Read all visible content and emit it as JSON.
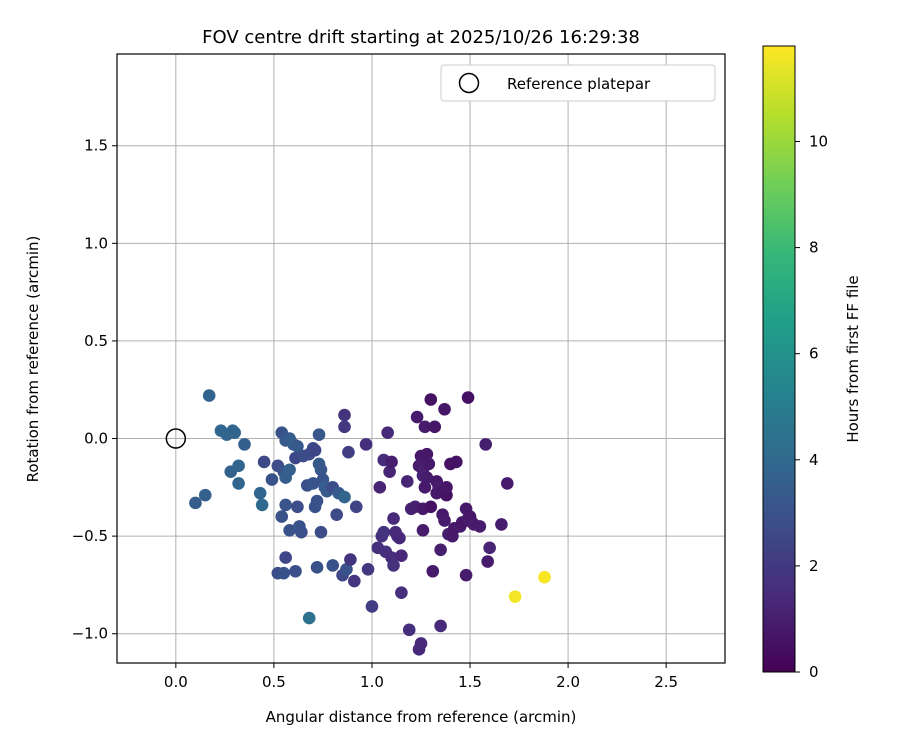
{
  "chart_data": {
    "type": "scatter",
    "title": "FOV centre drift starting at 2025/10/26 16:29:38",
    "xlabel": "Angular distance from reference (arcmin)",
    "ylabel": "Rotation from reference (arcmin)",
    "xlim": [
      -0.3,
      2.8
    ],
    "ylim": [
      -1.15,
      1.97
    ],
    "xticks": [
      0.0,
      0.5,
      1.0,
      1.5,
      2.0,
      2.5
    ],
    "xtick_labels": [
      "0.0",
      "0.5",
      "1.0",
      "1.5",
      "2.0",
      "2.5"
    ],
    "yticks": [
      -1.0,
      -0.5,
      0.0,
      0.5,
      1.0,
      1.5
    ],
    "ytick_labels": [
      "−1.0",
      "−0.5",
      "0.0",
      "0.5",
      "1.0",
      "1.5"
    ],
    "grid": true,
    "legend": {
      "placement": "top-right",
      "entries": [
        "Reference platepar"
      ]
    },
    "reference_point": {
      "x": 0.0,
      "y": 0.0,
      "label": "Reference platepar"
    },
    "colorbar": {
      "label": "Hours from first FF file",
      "range": [
        0,
        11.8
      ],
      "ticks": [
        0,
        2,
        4,
        6,
        8,
        10
      ],
      "tick_labels": [
        "0",
        "2",
        "4",
        "6",
        "8",
        "10"
      ],
      "colormap": [
        "#440154",
        "#482878",
        "#3e4989",
        "#31688e",
        "#26828e",
        "#1f9e89",
        "#35b779",
        "#6ece58",
        "#b5de2b",
        "#fde725"
      ]
    },
    "series": [
      {
        "name": "FOV centre",
        "points": [
          [
            0.17,
            0.22,
            3.7
          ],
          [
            0.23,
            0.04,
            3.9
          ],
          [
            0.26,
            0.02,
            3.8
          ],
          [
            0.29,
            0.04,
            3.9
          ],
          [
            0.3,
            0.03,
            3.8
          ],
          [
            0.35,
            -0.03,
            3.6
          ],
          [
            0.1,
            -0.33,
            3.5
          ],
          [
            0.15,
            -0.29,
            3.6
          ],
          [
            0.28,
            -0.17,
            3.7
          ],
          [
            0.32,
            -0.14,
            3.8
          ],
          [
            0.32,
            -0.23,
            3.8
          ],
          [
            0.43,
            -0.28,
            3.8
          ],
          [
            0.44,
            -0.34,
            4.0
          ],
          [
            0.45,
            -0.12,
            2.6
          ],
          [
            0.49,
            -0.21,
            3.0
          ],
          [
            0.52,
            -0.14,
            2.8
          ],
          [
            0.54,
            0.03,
            3.0
          ],
          [
            0.56,
            -0.01,
            3.3
          ],
          [
            0.58,
            0.0,
            3.4
          ],
          [
            0.6,
            -0.03,
            3.5
          ],
          [
            0.62,
            -0.04,
            3.3
          ],
          [
            0.55,
            -0.17,
            3.0
          ],
          [
            0.56,
            -0.2,
            3.5
          ],
          [
            0.58,
            -0.16,
            3.6
          ],
          [
            0.54,
            -0.4,
            3.0
          ],
          [
            0.56,
            -0.34,
            3.1
          ],
          [
            0.58,
            -0.47,
            3.0
          ],
          [
            0.62,
            -0.35,
            2.8
          ],
          [
            0.63,
            -0.45,
            3.0
          ],
          [
            0.64,
            -0.48,
            2.9
          ],
          [
            0.61,
            -0.1,
            2.6
          ],
          [
            0.65,
            -0.09,
            2.8
          ],
          [
            0.67,
            -0.24,
            2.9
          ],
          [
            0.68,
            -0.08,
            2.7
          ],
          [
            0.7,
            -0.05,
            2.8
          ],
          [
            0.71,
            -0.06,
            2.5
          ],
          [
            0.7,
            -0.23,
            3.1
          ],
          [
            0.71,
            -0.35,
            3.0
          ],
          [
            0.72,
            -0.32,
            3.0
          ],
          [
            0.73,
            0.02,
            3.2
          ],
          [
            0.73,
            -0.13,
            3.3
          ],
          [
            0.74,
            -0.16,
            3.2
          ],
          [
            0.75,
            -0.21,
            3.1
          ],
          [
            0.76,
            -0.25,
            3.5
          ],
          [
            0.77,
            -0.27,
            3.4
          ],
          [
            0.74,
            -0.48,
            2.8
          ],
          [
            0.52,
            -0.69,
            2.8
          ],
          [
            0.55,
            -0.69,
            3.0
          ],
          [
            0.56,
            -0.61,
            2.6
          ],
          [
            0.61,
            -0.68,
            2.9
          ],
          [
            0.68,
            -0.92,
            4.4
          ],
          [
            0.72,
            -0.66,
            3.0
          ],
          [
            0.8,
            -0.65,
            3.0
          ],
          [
            0.8,
            -0.25,
            2.8
          ],
          [
            0.82,
            -0.39,
            2.7
          ],
          [
            0.83,
            -0.28,
            3.4
          ],
          [
            0.85,
            -0.7,
            2.6
          ],
          [
            0.86,
            -0.3,
            3.8
          ],
          [
            0.87,
            -0.67,
            3.0
          ],
          [
            0.86,
            0.06,
            2.0
          ],
          [
            0.86,
            0.12,
            1.8
          ],
          [
            0.88,
            -0.07,
            2.2
          ],
          [
            0.89,
            -0.62,
            1.8
          ],
          [
            0.91,
            -0.73,
            1.9
          ],
          [
            0.92,
            -0.35,
            2.4
          ],
          [
            0.97,
            -0.03,
            1.6
          ],
          [
            0.98,
            -0.67,
            1.9
          ],
          [
            1.0,
            -0.86,
            2.2
          ],
          [
            1.03,
            -0.56,
            1.6
          ],
          [
            1.04,
            -0.25,
            1.2
          ],
          [
            1.05,
            -0.5,
            1.7
          ],
          [
            1.06,
            -0.48,
            1.8
          ],
          [
            1.06,
            -0.11,
            1.5
          ],
          [
            1.07,
            -0.58,
            1.6
          ],
          [
            1.08,
            0.03,
            1.4
          ],
          [
            1.09,
            -0.17,
            1.2
          ],
          [
            1.1,
            -0.12,
            1.0
          ],
          [
            1.1,
            -0.61,
            1.5
          ],
          [
            1.11,
            -0.41,
            1.4
          ],
          [
            1.11,
            -0.65,
            1.7
          ],
          [
            1.12,
            -0.48,
            1.4
          ],
          [
            1.13,
            -0.5,
            1.5
          ],
          [
            1.14,
            -0.51,
            1.3
          ],
          [
            1.15,
            -0.6,
            1.3
          ],
          [
            1.15,
            -0.79,
            1.6
          ],
          [
            1.18,
            -0.22,
            1.2
          ],
          [
            1.19,
            -0.98,
            1.6
          ],
          [
            1.2,
            -0.36,
            1.1
          ],
          [
            1.22,
            -0.35,
            1.0
          ],
          [
            1.23,
            0.11,
            0.8
          ],
          [
            1.24,
            -0.14,
            0.9
          ],
          [
            1.24,
            -1.08,
            1.3
          ],
          [
            1.25,
            -1.05,
            1.4
          ],
          [
            1.25,
            -0.09,
            0.8
          ],
          [
            1.26,
            -0.12,
            0.9
          ],
          [
            1.26,
            -0.16,
            1.0
          ],
          [
            1.26,
            -0.19,
            1.1
          ],
          [
            1.26,
            -0.36,
            0.8
          ],
          [
            1.26,
            -0.47,
            0.9
          ],
          [
            1.27,
            0.06,
            0.9
          ],
          [
            1.27,
            -0.25,
            0.8
          ],
          [
            1.28,
            -0.08,
            0.7
          ],
          [
            1.28,
            -0.2,
            0.9
          ],
          [
            1.29,
            -0.13,
            0.8
          ],
          [
            1.3,
            0.2,
            0.6
          ],
          [
            1.3,
            -0.35,
            0.6
          ],
          [
            1.31,
            -0.68,
            0.8
          ],
          [
            1.32,
            0.06,
            0.7
          ],
          [
            1.33,
            -0.22,
            0.7
          ],
          [
            1.33,
            -0.28,
            0.8
          ],
          [
            1.34,
            -0.25,
            0.9
          ],
          [
            1.35,
            -0.96,
            1.4
          ],
          [
            1.35,
            -0.57,
            1.0
          ],
          [
            1.36,
            -0.27,
            0.7
          ],
          [
            1.36,
            -0.39,
            0.8
          ],
          [
            1.37,
            0.15,
            0.7
          ],
          [
            1.37,
            -0.42,
            0.9
          ],
          [
            1.38,
            -0.29,
            0.6
          ],
          [
            1.38,
            -0.25,
            0.7
          ],
          [
            1.39,
            -0.49,
            1.0
          ],
          [
            1.4,
            -0.13,
            0.6
          ],
          [
            1.41,
            -0.5,
            0.8
          ],
          [
            1.42,
            -0.46,
            0.7
          ],
          [
            1.43,
            -0.12,
            0.6
          ],
          [
            1.45,
            -0.45,
            0.8
          ],
          [
            1.46,
            -0.43,
            0.7
          ],
          [
            1.48,
            -0.36,
            0.8
          ],
          [
            1.48,
            -0.7,
            0.9
          ],
          [
            1.49,
            0.21,
            0.5
          ],
          [
            1.49,
            -0.41,
            0.9
          ],
          [
            1.5,
            -0.4,
            0.7
          ],
          [
            1.51,
            -0.43,
            0.8
          ],
          [
            1.52,
            -0.44,
            0.9
          ],
          [
            1.55,
            -0.45,
            0.9
          ],
          [
            1.58,
            -0.03,
            1.0
          ],
          [
            1.59,
            -0.63,
            0.9
          ],
          [
            1.6,
            -0.56,
            1.2
          ],
          [
            1.66,
            -0.44,
            0.9
          ],
          [
            1.69,
            -0.23,
            0.9
          ],
          [
            1.73,
            -0.81,
            11.6
          ],
          [
            1.88,
            -0.71,
            11.7
          ]
        ]
      }
    ]
  }
}
